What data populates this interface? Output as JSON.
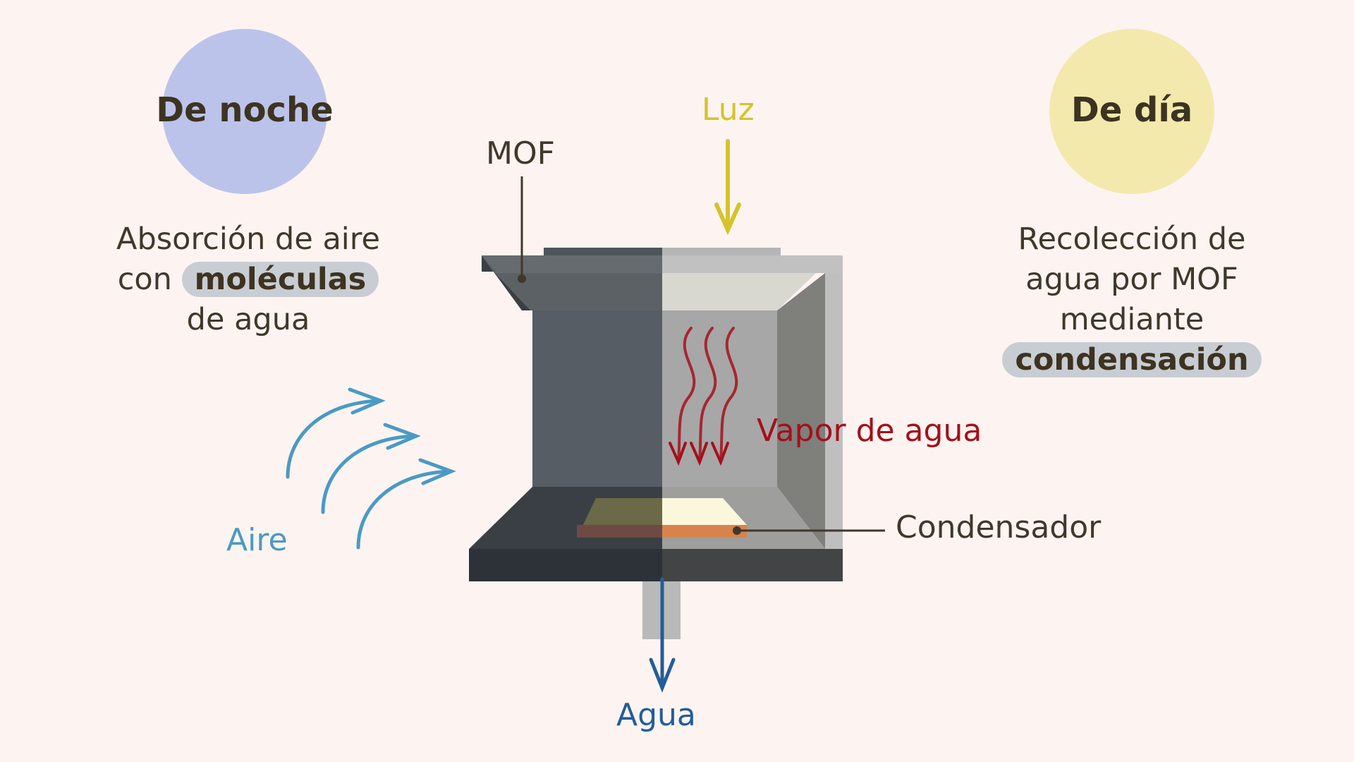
{
  "night": {
    "heading": "De noche",
    "text_before": "Absorción de aire con",
    "text_highlight": "moléculas",
    "text_after": "de agua",
    "circle_color": "#bcc3ea"
  },
  "day": {
    "heading": "De día",
    "text_before": "Recolección de agua por MOF mediante",
    "text_highlight": "condensación",
    "circle_color": "#f3e9ad"
  },
  "labels": {
    "mof": "MOF",
    "light": "Luz",
    "vapor": "Vapor de agua",
    "condenser": "Condensador",
    "air": "Aire",
    "water": "Agua"
  },
  "colors": {
    "light": "#d4c42a",
    "vapor": "#a3101b",
    "air": "#4a9ac4",
    "water": "#225d9a",
    "text": "#40382a"
  }
}
